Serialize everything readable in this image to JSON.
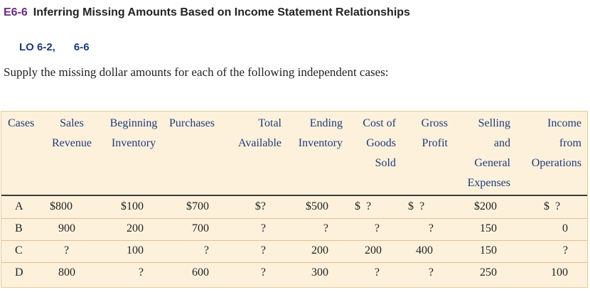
{
  "header": {
    "exercise_number": "E6-6",
    "exercise_title": "Inferring Missing Amounts Based on Income Statement Relationships",
    "lo_1": "LO 6-2,",
    "lo_2": "6-6"
  },
  "instructions": "Supply the missing dollar amounts for each of the following independent cases:",
  "table": {
    "columns": [
      {
        "lines": [
          "Cases"
        ]
      },
      {
        "lines": [
          "Sales",
          "Revenue"
        ]
      },
      {
        "lines": [
          "Beginning",
          "Inventory"
        ]
      },
      {
        "lines": [
          "Purchases"
        ]
      },
      {
        "lines": [
          "Total",
          "Available"
        ]
      },
      {
        "lines": [
          "Ending",
          "Inventory"
        ]
      },
      {
        "lines": [
          "Cost of",
          "Goods",
          "Sold"
        ]
      },
      {
        "lines": [
          "Gross",
          "Profit"
        ]
      },
      {
        "lines": [
          "Selling",
          "and",
          "General",
          "Expenses"
        ]
      },
      {
        "lines": [
          "Income",
          "from",
          "Operations"
        ]
      }
    ],
    "rows": [
      [
        "A",
        "$800",
        "$100",
        "$700",
        "$?",
        "$500",
        "$  ?",
        "$  ?",
        "$200",
        "$  ?"
      ],
      [
        "B",
        "900",
        "200",
        "700",
        "?",
        "?",
        "?",
        "?",
        "150",
        "0"
      ],
      [
        "C",
        "?",
        "100",
        "?",
        "?",
        "200",
        "200",
        "400",
        "150",
        "?"
      ],
      [
        "D",
        "800",
        "?",
        "600",
        "?",
        "300",
        "?",
        "?",
        "250",
        "100"
      ]
    ]
  }
}
